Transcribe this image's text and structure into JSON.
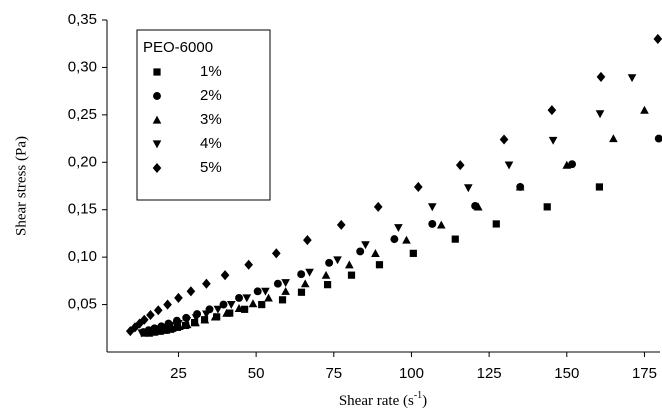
{
  "chart_data": {
    "type": "scatter",
    "xlabel": {
      "text": "Shear rate (s",
      "sup": "-1",
      "end": ")"
    },
    "ylabel": "Shear stress (Pa)",
    "legend_title": "PEO-6000",
    "legend_position": "upper left",
    "xlim": [
      2,
      180
    ],
    "xticks": [
      25,
      50,
      75,
      100,
      125,
      150,
      175
    ],
    "ylim": [
      0,
      0.35
    ],
    "yticks": [
      {
        "value": 0.05,
        "label": "0,05"
      },
      {
        "value": 0.1,
        "label": "0,10"
      },
      {
        "value": 0.15,
        "label": "0,15"
      },
      {
        "value": 0.2,
        "label": "0,20"
      },
      {
        "value": 0.25,
        "label": "0,25"
      },
      {
        "value": 0.3,
        "label": "0,30"
      },
      {
        "value": 0.35,
        "label": "0,35"
      }
    ],
    "series": [
      {
        "name": "1%",
        "marker": "square",
        "color": "#000000",
        "x": [
          14,
          15.5,
          17,
          18.7,
          20.5,
          22.5,
          24.7,
          27.3,
          30.2,
          33.4,
          37.3,
          41.5,
          46.3,
          51.8,
          58.5,
          64.6,
          73,
          80.7,
          89.7,
          100.6,
          114.1,
          127.3,
          143.7,
          160.5
        ],
        "y": [
          0.02,
          0.02,
          0.021,
          0.022,
          0.023,
          0.024,
          0.026,
          0.028,
          0.031,
          0.034,
          0.037,
          0.041,
          0.045,
          0.05,
          0.055,
          0.063,
          0.071,
          0.081,
          0.092,
          0.104,
          0.119,
          0.135,
          0.153,
          0.174
        ]
      },
      {
        "name": "2%",
        "marker": "circle",
        "color": "#000000",
        "x": [
          13.7,
          15.4,
          17.3,
          19.5,
          21.8,
          24.5,
          27.5,
          31,
          35,
          39.5,
          44.5,
          50.5,
          57,
          64.5,
          73.5,
          83.5,
          94.5,
          106.7,
          120.5,
          135,
          151.7,
          179.6
        ],
        "y": [
          0.021,
          0.023,
          0.025,
          0.027,
          0.03,
          0.033,
          0.036,
          0.04,
          0.045,
          0.05,
          0.057,
          0.064,
          0.072,
          0.082,
          0.094,
          0.106,
          0.119,
          0.135,
          0.154,
          0.174,
          0.198,
          0.225
        ]
      },
      {
        "name": "3%",
        "marker": "triangle-up",
        "color": "#000000",
        "x": [
          15.5,
          17.2,
          19,
          21,
          23,
          25.3,
          27.8,
          30.5,
          33.5,
          36.8,
          40.5,
          44.5,
          49,
          54,
          59.5,
          65.8,
          72.5,
          80,
          88.4,
          98.4,
          109.6,
          121.5,
          135,
          150,
          165,
          175
        ],
        "y": [
          0.02,
          0.021,
          0.022,
          0.023,
          0.025,
          0.027,
          0.029,
          0.031,
          0.034,
          0.037,
          0.041,
          0.046,
          0.051,
          0.057,
          0.064,
          0.072,
          0.081,
          0.092,
          0.104,
          0.118,
          0.134,
          0.153,
          0.174,
          0.197,
          0.225,
          0.255
        ]
      },
      {
        "name": "4%",
        "marker": "triangle-down",
        "color": "#000000",
        "x": [
          13.2,
          14.7,
          16.4,
          18.3,
          20.3,
          22.5,
          25,
          27.7,
          30.7,
          34,
          37.7,
          42,
          47,
          53,
          59.5,
          67.2,
          76.2,
          85.2,
          95.8,
          106.7,
          118.3,
          131.4,
          145.6,
          160.7,
          171
        ],
        "y": [
          0.02,
          0.021,
          0.022,
          0.024,
          0.026,
          0.028,
          0.03,
          0.033,
          0.036,
          0.04,
          0.045,
          0.05,
          0.057,
          0.064,
          0.073,
          0.084,
          0.097,
          0.113,
          0.131,
          0.153,
          0.173,
          0.197,
          0.223,
          0.251,
          0.289
        ]
      },
      {
        "name": "5%",
        "marker": "diamond",
        "color": "#000000",
        "x": [
          9.5,
          11,
          12.5,
          14,
          16,
          18.5,
          21.5,
          25,
          29,
          34,
          40,
          47.6,
          56.5,
          66.5,
          77.4,
          89.3,
          102.2,
          115.7,
          129.8,
          145.2,
          161,
          179.3
        ],
        "y": [
          0.022,
          0.026,
          0.03,
          0.034,
          0.039,
          0.044,
          0.05,
          0.057,
          0.064,
          0.072,
          0.081,
          0.092,
          0.104,
          0.118,
          0.134,
          0.153,
          0.174,
          0.197,
          0.224,
          0.255,
          0.29,
          0.33
        ]
      }
    ]
  }
}
